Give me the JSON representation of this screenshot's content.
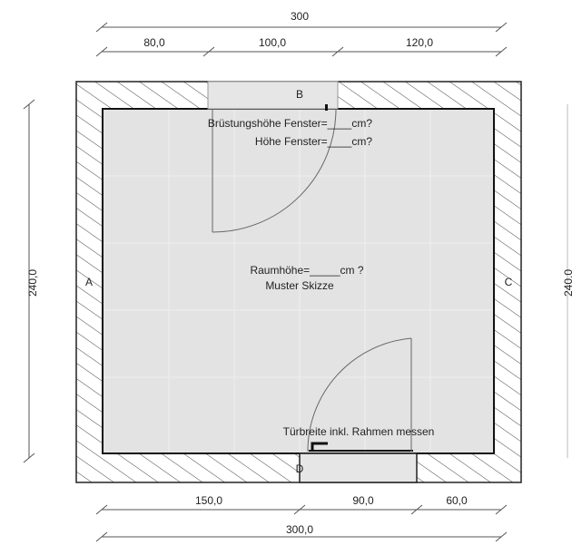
{
  "dimensions": {
    "top_total": "300",
    "top_segments": [
      "80,0",
      "100,0",
      "120,0"
    ],
    "bottom_segments": [
      "150,0",
      "90,0",
      "60,0"
    ],
    "bottom_total": "300,0",
    "left_height": "240,0",
    "right_height": "240,0"
  },
  "walls": {
    "a": "A",
    "b": "B",
    "c": "C",
    "d": "D"
  },
  "window_notes": {
    "sill_height": "Brüstungshöhe Fenster=____cm?",
    "window_height": "Höhe Fenster=____cm?"
  },
  "room_notes": {
    "room_height": "Raumhöhe=_____cm ?",
    "sample": "Muster Skizze"
  },
  "door_note": "Türbreite inkl. Rahmen messen"
}
